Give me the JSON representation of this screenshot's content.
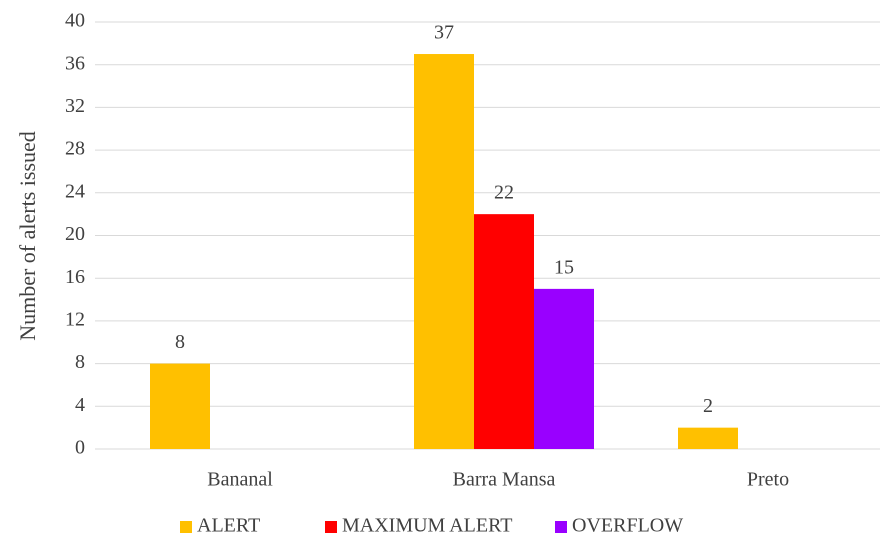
{
  "chart_data": {
    "type": "bar",
    "y_label": "Number of alerts issued",
    "categories": [
      "Bananal",
      "Barra Mansa",
      "Preto"
    ],
    "series": [
      {
        "name": "ALERT",
        "color": "#ffc000",
        "values": [
          8,
          37,
          2
        ]
      },
      {
        "name": "MAXIMUM ALERT",
        "color": "#ff0000",
        "values": [
          null,
          22,
          null
        ]
      },
      {
        "name": "OVERFLOW",
        "color": "#9900ff",
        "values": [
          null,
          15,
          null
        ]
      }
    ],
    "ylim": [
      0,
      40
    ],
    "yticks": [
      0,
      4,
      8,
      12,
      16,
      20,
      24,
      28,
      32,
      36,
      40
    ],
    "grid": true,
    "legend": "bottom"
  }
}
